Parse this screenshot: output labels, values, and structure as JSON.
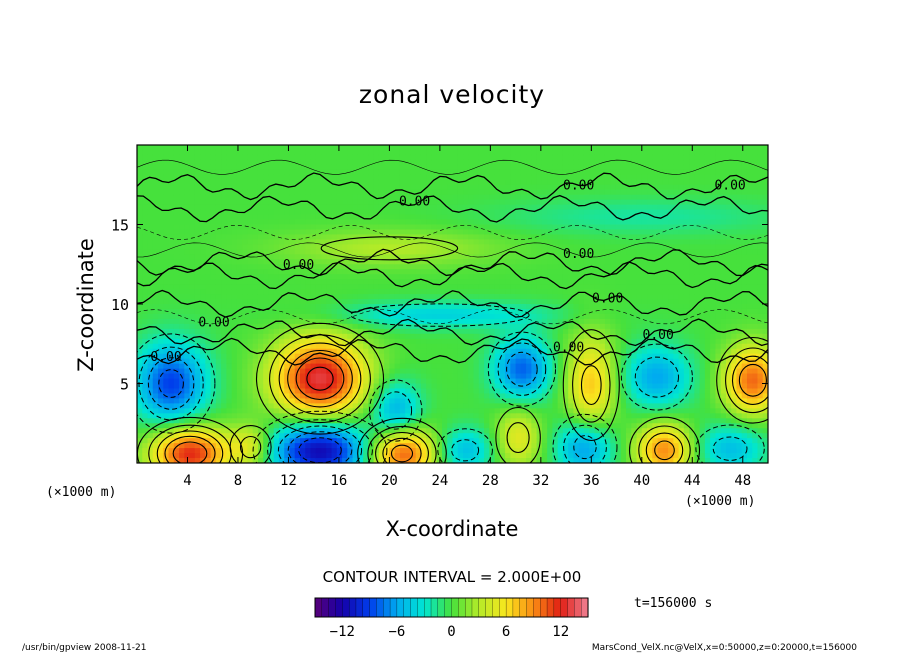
{
  "chart_data": {
    "type": "heatmap",
    "title": "zonal velocity",
    "xlabel": "X-coordinate",
    "ylabel": "Z-coordinate",
    "x_unit_left": "(×1000 m)",
    "x_unit_right": "(×1000 m)",
    "xlim": [
      0,
      50
    ],
    "ylim": [
      0,
      20
    ],
    "x_ticks": [
      "4",
      "8",
      "12",
      "16",
      "20",
      "24",
      "28",
      "32",
      "36",
      "40",
      "44",
      "48"
    ],
    "x_tick_values": [
      4,
      8,
      12,
      16,
      20,
      24,
      28,
      32,
      36,
      40,
      44,
      48
    ],
    "y_ticks": [
      "5",
      "10",
      "15"
    ],
    "y_tick_values": [
      5,
      10,
      15
    ],
    "contour_interval_text": "CONTOUR INTERVAL = 2.000E+00",
    "contour_labels": [
      {
        "text": "0.00",
        "x": 35,
        "z": 17.2
      },
      {
        "text": "0.00",
        "x": 47,
        "z": 17.2
      },
      {
        "text": "0.00",
        "x": 22,
        "z": 16.2
      },
      {
        "text": "0.00",
        "x": 12.8,
        "z": 12.2
      },
      {
        "text": "0.00",
        "x": 35,
        "z": 12.9
      },
      {
        "text": "0.00",
        "x": 37.3,
        "z": 10.1
      },
      {
        "text": "0.00",
        "x": 6.1,
        "z": 8.6
      },
      {
        "text": "0.00",
        "x": 41.3,
        "z": 7.8
      },
      {
        "text": "0.00",
        "x": 34.2,
        "z": 7.0
      },
      {
        "text": "0.00",
        "x": 2.3,
        "z": 6.4
      }
    ],
    "features": [
      {
        "x": 2.7,
        "z": 5.0,
        "value": -9,
        "sx": 2.0,
        "sz": 1.8
      },
      {
        "x": 14.5,
        "z": 5.3,
        "value": 13,
        "sx": 2.6,
        "sz": 1.8
      },
      {
        "x": 20.5,
        "z": 3.3,
        "value": -6,
        "sx": 1.4,
        "sz": 1.3
      },
      {
        "x": 30.5,
        "z": 5.9,
        "value": -8,
        "sx": 1.6,
        "sz": 1.4
      },
      {
        "x": 36.0,
        "z": 4.9,
        "value": 7,
        "sx": 1.4,
        "sz": 2.2
      },
      {
        "x": 41.2,
        "z": 5.4,
        "value": -6,
        "sx": 1.9,
        "sz": 1.4
      },
      {
        "x": 48.8,
        "z": 5.2,
        "value": 10,
        "sx": 1.6,
        "sz": 1.5
      },
      {
        "x": 4.2,
        "z": 0.6,
        "value": 12,
        "sx": 2.2,
        "sz": 1.2
      },
      {
        "x": 14.5,
        "z": 0.8,
        "value": -12,
        "sx": 2.8,
        "sz": 1.3
      },
      {
        "x": 21.0,
        "z": 0.6,
        "value": 11,
        "sx": 1.9,
        "sz": 1.2
      },
      {
        "x": 26.0,
        "z": 0.8,
        "value": -5,
        "sx": 1.6,
        "sz": 1.0
      },
      {
        "x": 30.2,
        "z": 1.6,
        "value": 5,
        "sx": 1.3,
        "sz": 1.4
      },
      {
        "x": 35.5,
        "z": 1.0,
        "value": -7,
        "sx": 1.6,
        "sz": 1.3
      },
      {
        "x": 41.8,
        "z": 0.8,
        "value": 9,
        "sx": 1.6,
        "sz": 1.2
      },
      {
        "x": 47.0,
        "z": 0.9,
        "value": -5,
        "sx": 2.0,
        "sz": 1.1
      },
      {
        "x": 9.0,
        "z": 1.0,
        "value": 5,
        "sx": 1.2,
        "sz": 1.0
      },
      {
        "x": 24.0,
        "z": 9.3,
        "value": -4,
        "sx": 6.0,
        "sz": 0.6
      },
      {
        "x": 20.0,
        "z": 13.5,
        "value": 3,
        "sx": 6.0,
        "sz": 0.8
      },
      {
        "x": 40.0,
        "z": 15.5,
        "value": -2,
        "sx": 8.0,
        "sz": 0.8
      }
    ],
    "colorbar": {
      "vmin": -15,
      "vmax": 15,
      "tick_labels": [
        "−12",
        "−6",
        "0",
        "6",
        "12"
      ],
      "tick_values": [
        -12,
        -6,
        0,
        6,
        12
      ]
    },
    "time_label": "t=156000 s"
  },
  "footer": {
    "left": "/usr/bin/gpview  2008-11-21",
    "right": "MarsCond_VelX.nc@VelX,x=0:50000,z=0:20000,t=156000"
  }
}
